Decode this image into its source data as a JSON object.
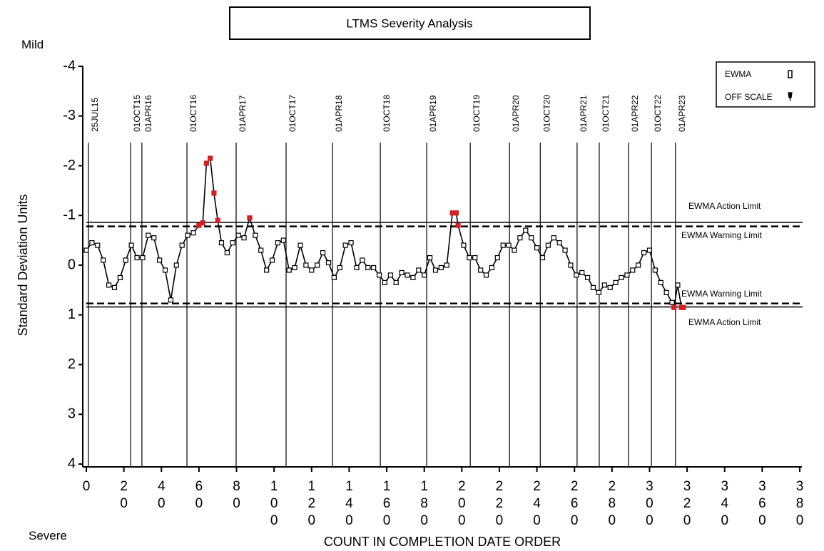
{
  "chart_data": {
    "type": "line",
    "title": "LTMS Severity Analysis",
    "x_label": "COUNT IN COMPLETION DATE ORDER",
    "y_label": "Standard Deviation Units",
    "y_top_label": "Mild",
    "y_bottom_label": "Severe",
    "xlim": [
      0,
      380
    ],
    "xticks": [
      0,
      20,
      40,
      60,
      80,
      100,
      120,
      140,
      160,
      180,
      200,
      220,
      240,
      260,
      280,
      300,
      320,
      340,
      360,
      380
    ],
    "ylim": [
      4,
      -4
    ],
    "yticks": [
      -4,
      -3,
      -2,
      -1,
      0,
      1,
      2,
      3,
      4
    ],
    "legend": "upper right",
    "off_scale_label": "OFF SCALE",
    "series": [
      {
        "name": "EWMA",
        "color": "#000000",
        "alert_color": "#d42020",
        "x": [
          0,
          3,
          6,
          9,
          12,
          15,
          18,
          21,
          24,
          27,
          30,
          33,
          36,
          39,
          42,
          45,
          48,
          51,
          54,
          57,
          60,
          62,
          64,
          66,
          68,
          70,
          72,
          75,
          78,
          81,
          84,
          87,
          90,
          93,
          96,
          99,
          102,
          105,
          108,
          111,
          114,
          117,
          120,
          123,
          126,
          129,
          132,
          135,
          138,
          141,
          144,
          147,
          150,
          153,
          156,
          159,
          162,
          165,
          168,
          171,
          174,
          177,
          180,
          183,
          186,
          189,
          192,
          195,
          197,
          198,
          201,
          204,
          207,
          210,
          213,
          216,
          219,
          222,
          225,
          228,
          231,
          234,
          237,
          240,
          243,
          246,
          249,
          252,
          255,
          258,
          261,
          264,
          267,
          270,
          273,
          276,
          279,
          282,
          285,
          288,
          291,
          294,
          297,
          300,
          303,
          306,
          309,
          312,
          313,
          315,
          317,
          318
        ],
        "values": [
          -0.3,
          -0.45,
          -0.4,
          -0.1,
          0.4,
          0.45,
          0.25,
          -0.1,
          -0.4,
          -0.15,
          -0.15,
          -0.6,
          -0.55,
          -0.1,
          0.1,
          0.7,
          0,
          -0.4,
          -0.6,
          -0.65,
          -0.8,
          -0.85,
          -2.05,
          -2.15,
          -1.45,
          -0.9,
          -0.45,
          -0.25,
          -0.45,
          -0.6,
          -0.55,
          -0.95,
          -0.6,
          -0.3,
          0.1,
          -0.1,
          -0.45,
          -0.5,
          0.1,
          0.05,
          -0.4,
          0,
          0.1,
          0,
          -0.25,
          -0.05,
          0.25,
          0.05,
          -0.4,
          -0.45,
          0.05,
          -0.1,
          0.05,
          0.05,
          0.2,
          0.35,
          0.2,
          0.35,
          0.15,
          0.2,
          0.25,
          0.1,
          0.2,
          -0.15,
          0.1,
          0.05,
          0,
          -1.05,
          -1.05,
          -0.8,
          -0.4,
          -0.15,
          -0.15,
          0.1,
          0.2,
          0.05,
          -0.15,
          -0.4,
          -0.4,
          -0.3,
          -0.55,
          -0.7,
          -0.55,
          -0.35,
          -0.15,
          -0.4,
          -0.55,
          -0.45,
          -0.3,
          0,
          0.2,
          0.15,
          0.25,
          0.45,
          0.55,
          0.4,
          0.45,
          0.35,
          0.25,
          0.2,
          0.1,
          0,
          -0.25,
          -0.3,
          0.1,
          0.35,
          0.55,
          0.75,
          0.85,
          0.4,
          0.85,
          0.85
        ]
      }
    ],
    "reference_lines": [
      {
        "value": -0.86,
        "label": "EWMA Action Limit",
        "kind": "action"
      },
      {
        "value": -0.78,
        "label": "EWMA Warning Limit",
        "kind": "warning"
      },
      {
        "value": 0.77,
        "label": "EWMA Warning Limit",
        "kind": "warning"
      },
      {
        "value": 0.84,
        "label": "EWMA Action Limit",
        "kind": "action"
      }
    ],
    "date_markers": [
      {
        "x": 1.1,
        "label": "25JUL15"
      },
      {
        "x": 23.6,
        "label": "01OCT15"
      },
      {
        "x": 29.6,
        "label": "01APR16"
      },
      {
        "x": 53.6,
        "label": "01OCT16"
      },
      {
        "x": 79.8,
        "label": "01APR17"
      },
      {
        "x": 106.4,
        "label": "01OCT17"
      },
      {
        "x": 131.1,
        "label": "01APR18"
      },
      {
        "x": 156.6,
        "label": "01OCT18"
      },
      {
        "x": 181.3,
        "label": "01APR19"
      },
      {
        "x": 204.5,
        "label": "01OCT19"
      },
      {
        "x": 225.4,
        "label": "01APR20"
      },
      {
        "x": 241.8,
        "label": "01OCT20"
      },
      {
        "x": 261.4,
        "label": "01APR21"
      },
      {
        "x": 273.2,
        "label": "01OCT21"
      },
      {
        "x": 288.8,
        "label": "01APR22"
      },
      {
        "x": 301,
        "label": "01OCT22"
      },
      {
        "x": 313.8,
        "label": "01APR23"
      }
    ]
  }
}
